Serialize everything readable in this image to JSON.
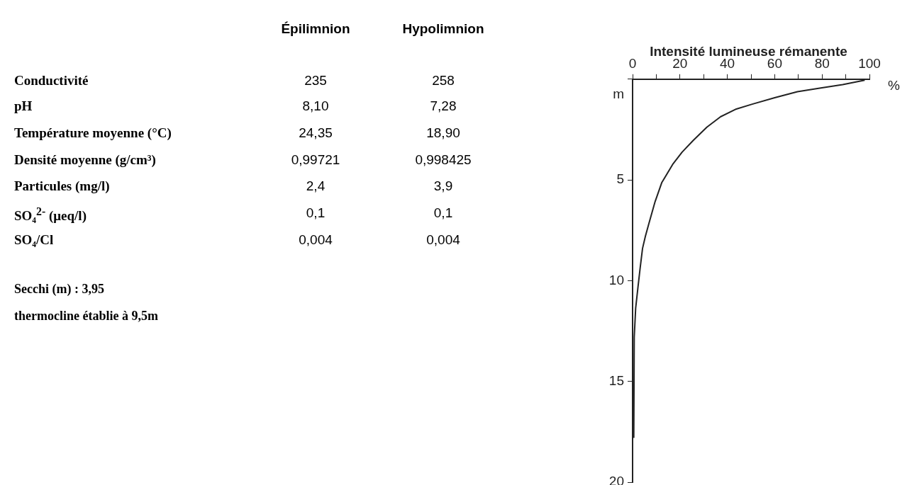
{
  "chart_data": [
    {
      "type": "other",
      "categories": [
        "Épilimnion",
        "Hypolimnion"
      ],
      "y_categories": [
        "Conductivité",
        "pH",
        "Température moyenne (°C)",
        "Densité moyenne (g/cm³)",
        "Particules (mg/l)",
        "SO₄$^{2-}$ (μeq/l)",
        "SO₄/Cl"
      ],
      "cell_labels": [
        [
          "235",
          "258"
        ],
        [
          "8,10",
          "7,28"
        ],
        [
          "24,35",
          "18,90"
        ],
        [
          "0,99721",
          "0,998425"
        ],
        [
          "2,4",
          "3,9"
        ],
        [
          "0,1",
          "0,1"
        ],
        [
          "0,004",
          "0,004"
        ]
      ],
      "annotations": [
        "Secchi (m) : 3,95",
        "thermocline établie à 9,5m"
      ]
    },
    {
      "type": "line",
      "title": "Intensité lumineuse rémanente",
      "xlabel": "%",
      "ylabel": "m",
      "series": [
        {
          "color": "#222222",
          "x": [
            98,
            88.7,
            79,
            69.6,
            60,
            50.5,
            43.8,
            37.2,
            31.4,
            25.7,
            20.9,
            17.1,
            12.3,
            9.5,
            6.8,
            5.4,
            4.2,
            3.2,
            2.3,
            1.3,
            0.7,
            0.5
          ],
          "values": [
            0.05,
            0.27,
            0.45,
            0.62,
            0.92,
            1.24,
            1.48,
            1.86,
            2.38,
            3.03,
            3.62,
            4.2,
            5.14,
            6.08,
            7.2,
            7.8,
            8.4,
            9.37,
            10.3,
            11.36,
            12.8,
            17.8
          ]
        }
      ],
      "xlim": [
        0,
        100
      ],
      "xticks": [
        0,
        {
          "value": 10,
          "label": null
        },
        20,
        {
          "value": 30,
          "label": null
        },
        40,
        {
          "value": 50,
          "label": null
        },
        60,
        {
          "value": 70,
          "label": null
        },
        80,
        {
          "value": 90,
          "label": null
        },
        100
      ],
      "ylim": [
        20,
        0
      ],
      "yticks": [
        {
          "value": 0,
          "label": null
        },
        5,
        10,
        15,
        20
      ],
      "grid": false,
      "legend": false,
      "marker": "none",
      "line_style": "solid"
    }
  ]
}
